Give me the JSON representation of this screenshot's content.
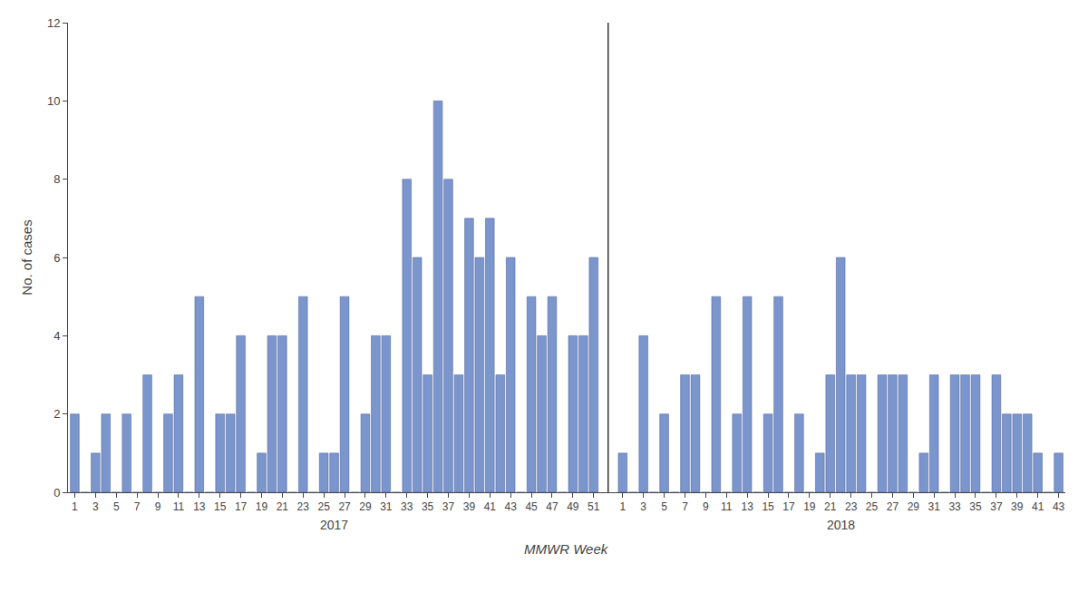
{
  "chart_data": {
    "type": "bar",
    "ylabel": "No. of cases",
    "xlabel": "MMWR Week",
    "color": "#7b96cc",
    "grid": false,
    "ylim": [
      0,
      12
    ],
    "yticks": [
      0,
      2,
      4,
      6,
      8,
      10,
      12
    ],
    "groups": [
      {
        "label": "2017",
        "categories": [
          "1",
          null,
          "3",
          null,
          "5",
          null,
          "7",
          null,
          "9",
          null,
          "11",
          null,
          "13",
          null,
          "15",
          null,
          "17",
          null,
          "19",
          null,
          "21",
          null,
          "23",
          null,
          "25",
          null,
          "27",
          null,
          "29",
          null,
          "31",
          null,
          "33",
          null,
          "35",
          null,
          "37",
          null,
          "39",
          null,
          "41",
          null,
          "43",
          null,
          "45",
          null,
          "47",
          null,
          "49",
          null,
          "51"
        ],
        "values": [
          2,
          0,
          1,
          2,
          0,
          2,
          0,
          3,
          0,
          2,
          3,
          0,
          5,
          0,
          2,
          2,
          4,
          0,
          1,
          4,
          4,
          0,
          5,
          0,
          1,
          1,
          5,
          0,
          2,
          4,
          4,
          0,
          8,
          6,
          3,
          10,
          8,
          3,
          7,
          6,
          7,
          3,
          6,
          0,
          5,
          4,
          5,
          0,
          4,
          4,
          6
        ]
      },
      {
        "label": "2018",
        "categories": [
          "1",
          null,
          "3",
          null,
          "5",
          null,
          "7",
          null,
          "9",
          null,
          "11",
          null,
          "13",
          null,
          "15",
          null,
          "17",
          null,
          "19",
          null,
          "21",
          null,
          "23",
          null,
          "25",
          null,
          "27",
          null,
          "29",
          null,
          "31",
          null,
          "33",
          null,
          "35",
          null,
          "37",
          null,
          "39",
          null,
          "41",
          null,
          "43"
        ],
        "values": [
          1,
          0,
          4,
          0,
          2,
          0,
          3,
          3,
          0,
          5,
          0,
          2,
          5,
          0,
          2,
          5,
          0,
          2,
          0,
          1,
          3,
          6,
          3,
          3,
          0,
          3,
          3,
          3,
          0,
          1,
          3,
          0,
          3,
          3,
          3,
          0,
          3,
          2,
          2,
          2,
          1,
          0,
          1
        ]
      }
    ]
  }
}
